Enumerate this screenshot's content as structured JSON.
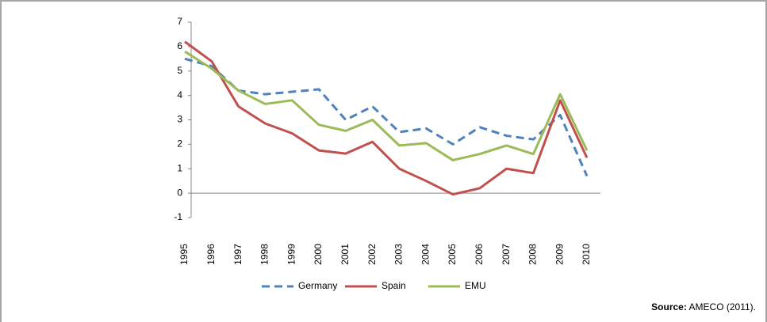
{
  "chart_data": {
    "type": "line",
    "categories": [
      "1995",
      "1996",
      "1997",
      "1998",
      "1999",
      "2000",
      "2001",
      "2002",
      "2003",
      "2004",
      "2005",
      "2006",
      "2007",
      "2008",
      "2009",
      "2010"
    ],
    "series": [
      {
        "name": "Germany",
        "color": "#4f81bd",
        "dash": true,
        "values": [
          5.5,
          5.2,
          4.2,
          4.05,
          4.15,
          4.25,
          3.0,
          3.55,
          2.5,
          2.65,
          2.0,
          2.7,
          2.35,
          2.2,
          3.2,
          0.7
        ]
      },
      {
        "name": "Spain",
        "color": "#c0504d",
        "dash": false,
        "values": [
          6.2,
          5.4,
          3.55,
          2.85,
          2.45,
          1.75,
          1.62,
          2.1,
          1.0,
          0.5,
          -0.05,
          0.2,
          1.0,
          0.82,
          3.8,
          1.45
        ]
      },
      {
        "name": "EMU",
        "color": "#9bbb59",
        "dash": false,
        "values": [
          5.8,
          5.1,
          4.2,
          3.65,
          3.8,
          2.8,
          2.55,
          3.0,
          1.95,
          2.05,
          1.35,
          1.6,
          1.95,
          1.6,
          4.05,
          1.75
        ]
      }
    ],
    "ylim": [
      -1,
      7
    ],
    "yticks": [
      -1,
      0,
      1,
      2,
      3,
      4,
      5,
      6,
      7
    ],
    "legend": "bottom",
    "source_label": "Source:",
    "source_text": "AMECO (2011)."
  }
}
